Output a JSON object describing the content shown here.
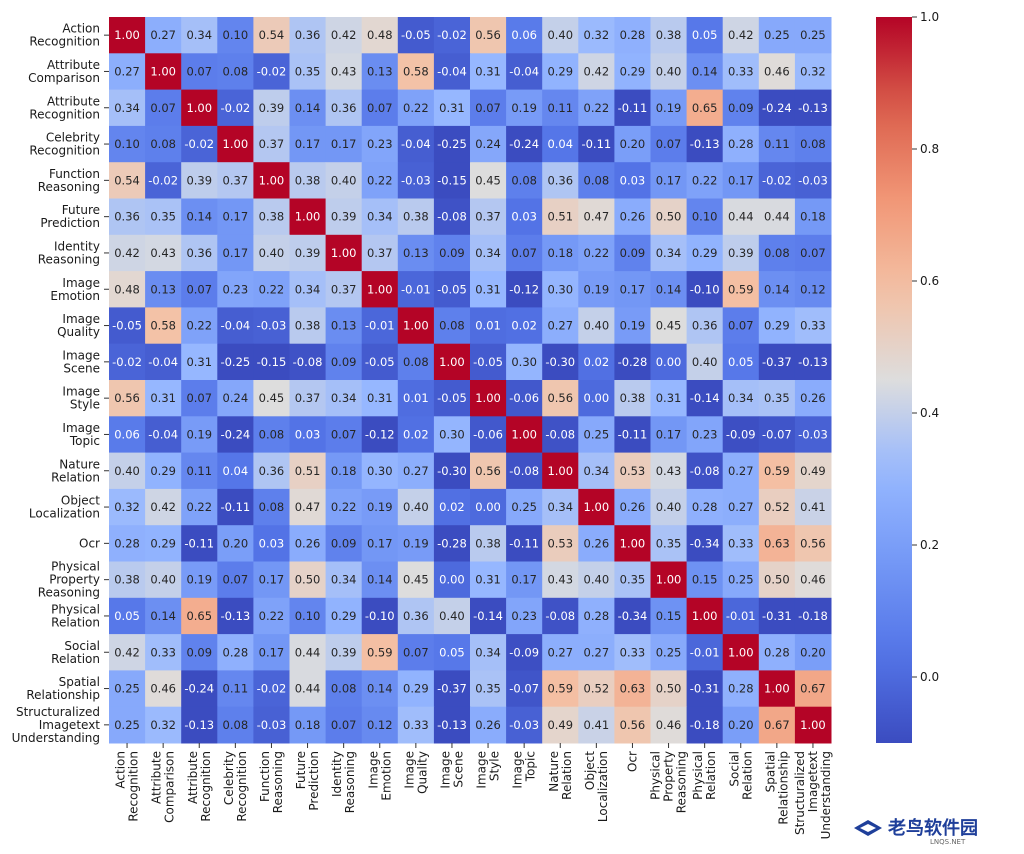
{
  "chart_data": {
    "type": "heatmap",
    "labels": [
      [
        "Action",
        "Recognition"
      ],
      [
        "Attribute",
        "Comparison"
      ],
      [
        "Attribute",
        "Recognition"
      ],
      [
        "Celebrity",
        "Recognition"
      ],
      [
        "Function",
        "Reasoning"
      ],
      [
        "Future",
        "Prediction"
      ],
      [
        "Identity",
        "Reasoning"
      ],
      [
        "Image",
        "Emotion"
      ],
      [
        "Image",
        "Quality"
      ],
      [
        "Image",
        "Scene"
      ],
      [
        "Image",
        "Style"
      ],
      [
        "Image",
        "Topic"
      ],
      [
        "Nature",
        "Relation"
      ],
      [
        "Object",
        "Localization"
      ],
      [
        "Ocr"
      ],
      [
        "Physical",
        "Property",
        "Reasoning"
      ],
      [
        "Physical",
        "Relation"
      ],
      [
        "Social",
        "Relation"
      ],
      [
        "Spatial",
        "Relationship"
      ],
      [
        "Structuralized",
        "Imagetext",
        "Understanding"
      ]
    ],
    "matrix": [
      [
        1.0,
        0.27,
        0.34,
        0.1,
        0.54,
        0.36,
        0.42,
        0.48,
        -0.05,
        -0.02,
        0.56,
        0.06,
        0.4,
        0.32,
        0.28,
        0.38,
        0.05,
        0.42,
        0.25,
        0.25
      ],
      [
        0.27,
        1.0,
        0.07,
        0.08,
        -0.02,
        0.35,
        0.43,
        0.13,
        0.58,
        -0.04,
        0.31,
        -0.04,
        0.29,
        0.42,
        0.29,
        0.4,
        0.14,
        0.33,
        0.46,
        0.32
      ],
      [
        0.34,
        0.07,
        1.0,
        -0.02,
        0.39,
        0.14,
        0.36,
        0.07,
        0.22,
        0.31,
        0.07,
        0.19,
        0.11,
        0.22,
        -0.11,
        0.19,
        0.65,
        0.09,
        -0.24,
        -0.13
      ],
      [
        0.1,
        0.08,
        -0.02,
        1.0,
        0.37,
        0.17,
        0.17,
        0.23,
        -0.04,
        -0.25,
        0.24,
        -0.24,
        0.04,
        -0.11,
        0.2,
        0.07,
        -0.13,
        0.28,
        0.11,
        0.08
      ],
      [
        0.54,
        -0.02,
        0.39,
        0.37,
        1.0,
        0.38,
        0.4,
        0.22,
        -0.03,
        -0.15,
        0.45,
        0.08,
        0.36,
        0.08,
        0.03,
        0.17,
        0.22,
        0.17,
        -0.02,
        -0.03
      ],
      [
        0.36,
        0.35,
        0.14,
        0.17,
        0.38,
        1.0,
        0.39,
        0.34,
        0.38,
        -0.08,
        0.37,
        0.03,
        0.51,
        0.47,
        0.26,
        0.5,
        0.1,
        0.44,
        0.44,
        0.18
      ],
      [
        0.42,
        0.43,
        0.36,
        0.17,
        0.4,
        0.39,
        1.0,
        0.37,
        0.13,
        0.09,
        0.34,
        0.07,
        0.18,
        0.22,
        0.09,
        0.34,
        0.29,
        0.39,
        0.08,
        0.07
      ],
      [
        0.48,
        0.13,
        0.07,
        0.23,
        0.22,
        0.34,
        0.37,
        1.0,
        -0.01,
        -0.05,
        0.31,
        -0.12,
        0.3,
        0.19,
        0.17,
        0.14,
        -0.1,
        0.59,
        0.14,
        0.12
      ],
      [
        -0.05,
        0.58,
        0.22,
        -0.04,
        -0.03,
        0.38,
        0.13,
        -0.01,
        1.0,
        0.08,
        0.01,
        0.02,
        0.27,
        0.4,
        0.19,
        0.45,
        0.36,
        0.07,
        0.29,
        0.33
      ],
      [
        -0.02,
        -0.04,
        0.31,
        -0.25,
        -0.15,
        -0.08,
        0.09,
        -0.05,
        0.08,
        1.0,
        -0.05,
        0.3,
        -0.3,
        0.02,
        -0.28,
        0.0,
        0.4,
        0.05,
        -0.37,
        -0.13
      ],
      [
        0.56,
        0.31,
        0.07,
        0.24,
        0.45,
        0.37,
        0.34,
        0.31,
        0.01,
        -0.05,
        1.0,
        -0.06,
        0.56,
        0.0,
        0.38,
        0.31,
        -0.14,
        0.34,
        0.35,
        0.26
      ],
      [
        0.06,
        -0.04,
        0.19,
        -0.24,
        0.08,
        0.03,
        0.07,
        -0.12,
        0.02,
        0.3,
        -0.06,
        1.0,
        -0.08,
        0.25,
        -0.11,
        0.17,
        0.23,
        -0.09,
        -0.07,
        -0.03
      ],
      [
        0.4,
        0.29,
        0.11,
        0.04,
        0.36,
        0.51,
        0.18,
        0.3,
        0.27,
        -0.3,
        0.56,
        -0.08,
        1.0,
        0.34,
        0.53,
        0.43,
        -0.08,
        0.27,
        0.59,
        0.49
      ],
      [
        0.32,
        0.42,
        0.22,
        -0.11,
        0.08,
        0.47,
        0.22,
        0.19,
        0.4,
        0.02,
        0.0,
        0.25,
        0.34,
        1.0,
        0.26,
        0.4,
        0.28,
        0.27,
        0.52,
        0.41
      ],
      [
        0.28,
        0.29,
        -0.11,
        0.2,
        0.03,
        0.26,
        0.09,
        0.17,
        0.19,
        -0.28,
        0.38,
        -0.11,
        0.53,
        0.26,
        1.0,
        0.35,
        -0.34,
        0.33,
        0.63,
        0.56
      ],
      [
        0.38,
        0.4,
        0.19,
        0.07,
        0.17,
        0.5,
        0.34,
        0.14,
        0.45,
        0.0,
        0.31,
        0.17,
        0.43,
        0.4,
        0.35,
        1.0,
        0.15,
        0.25,
        0.5,
        0.46
      ],
      [
        0.05,
        0.14,
        0.65,
        -0.13,
        0.22,
        0.1,
        0.29,
        -0.1,
        0.36,
        0.4,
        -0.14,
        0.23,
        -0.08,
        0.28,
        -0.34,
        0.15,
        1.0,
        -0.01,
        -0.31,
        -0.18
      ],
      [
        0.42,
        0.33,
        0.09,
        0.28,
        0.17,
        0.44,
        0.39,
        0.59,
        0.07,
        0.05,
        0.34,
        -0.09,
        0.27,
        0.27,
        0.33,
        0.25,
        -0.01,
        1.0,
        0.28,
        0.2
      ],
      [
        0.25,
        0.46,
        -0.24,
        0.11,
        -0.02,
        0.44,
        0.08,
        0.14,
        0.29,
        -0.37,
        0.35,
        -0.07,
        0.59,
        0.52,
        0.63,
        0.5,
        -0.31,
        0.28,
        1.0,
        0.67
      ],
      [
        0.25,
        0.32,
        -0.13,
        0.08,
        -0.03,
        0.18,
        0.07,
        0.12,
        0.33,
        -0.13,
        0.26,
        -0.03,
        0.49,
        0.41,
        0.56,
        0.46,
        -0.18,
        0.2,
        0.67,
        1.0
      ]
    ],
    "color_range": [
      -0.1,
      1.0
    ],
    "colormap": "coolwarm",
    "colorbar_ticks": [
      0.0,
      0.2,
      0.4,
      0.6,
      0.8,
      1.0
    ],
    "colorbar_tick_labels": [
      "0.0",
      "0.2",
      "0.4",
      "0.6",
      "0.8",
      "1.0"
    ],
    "value_format": "2 decimals",
    "title": "",
    "xlabel": "",
    "ylabel": ""
  },
  "watermark": {
    "text": "老鸟软件园",
    "subtext": "LNQS.NET",
    "color": "#1f3f9a"
  }
}
